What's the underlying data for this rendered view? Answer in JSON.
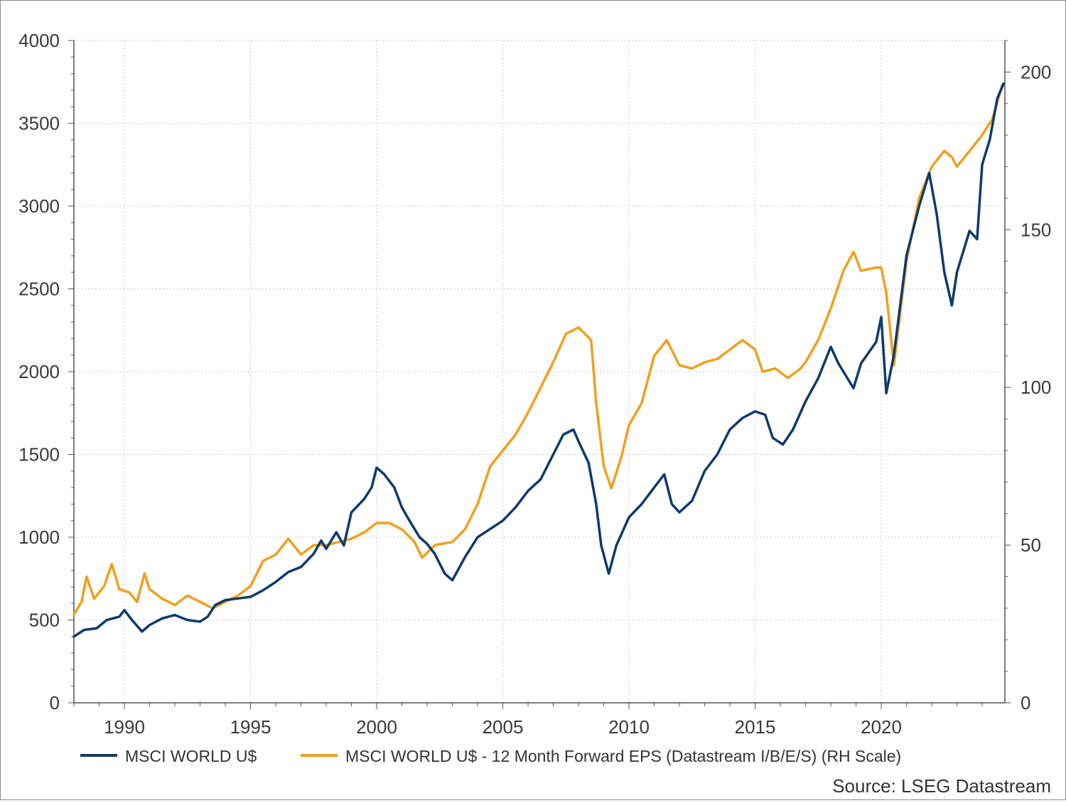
{
  "chart_data": {
    "type": "line",
    "title": "",
    "xlabel": "",
    "ylabel": "",
    "xlim": [
      1988.0,
      2024.9
    ],
    "ylim_left": [
      0,
      4000
    ],
    "ylim_right": [
      0,
      210
    ],
    "grid": true,
    "legend_position": "bottom",
    "x_ticks": [
      1990,
      1995,
      2000,
      2005,
      2010,
      2015,
      2020
    ],
    "x_tick_labels": [
      "1990",
      "1995",
      "2000",
      "2005",
      "2010",
      "2015",
      "2020"
    ],
    "y_left_ticks": [
      0,
      500,
      1000,
      1500,
      2000,
      2500,
      3000,
      3500,
      4000
    ],
    "y_left_tick_labels": [
      "0",
      "500",
      "1000",
      "1500",
      "2000",
      "2500",
      "3000",
      "3500",
      "4000"
    ],
    "y_right_ticks": [
      0,
      50,
      100,
      150,
      200
    ],
    "y_right_tick_labels": [
      "0",
      "50",
      "100",
      "150",
      "200"
    ],
    "source": "Source: LSEG Datastream",
    "series": [
      {
        "name": "MSCI WORLD U$",
        "color": "#0e3a6e",
        "axis": "left",
        "points": [
          [
            1988.0,
            400
          ],
          [
            1988.4,
            440
          ],
          [
            1988.9,
            450
          ],
          [
            1989.3,
            500
          ],
          [
            1989.8,
            520
          ],
          [
            1990.0,
            560
          ],
          [
            1990.3,
            500
          ],
          [
            1990.7,
            430
          ],
          [
            1991.0,
            470
          ],
          [
            1991.5,
            510
          ],
          [
            1992.0,
            530
          ],
          [
            1992.5,
            500
          ],
          [
            1993.0,
            490
          ],
          [
            1993.3,
            520
          ],
          [
            1993.6,
            590
          ],
          [
            1994.0,
            620
          ],
          [
            1994.5,
            630
          ],
          [
            1995.0,
            640
          ],
          [
            1995.5,
            680
          ],
          [
            1996.0,
            730
          ],
          [
            1996.5,
            790
          ],
          [
            1997.0,
            820
          ],
          [
            1997.5,
            900
          ],
          [
            1997.8,
            980
          ],
          [
            1998.0,
            930
          ],
          [
            1998.4,
            1030
          ],
          [
            1998.7,
            950
          ],
          [
            1999.0,
            1150
          ],
          [
            1999.5,
            1230
          ],
          [
            1999.8,
            1300
          ],
          [
            2000.0,
            1420
          ],
          [
            2000.3,
            1380
          ],
          [
            2000.7,
            1300
          ],
          [
            2001.0,
            1180
          ],
          [
            2001.3,
            1100
          ],
          [
            2001.7,
            1000
          ],
          [
            2002.0,
            960
          ],
          [
            2002.3,
            900
          ],
          [
            2002.7,
            780
          ],
          [
            2003.0,
            740
          ],
          [
            2003.5,
            880
          ],
          [
            2004.0,
            1000
          ],
          [
            2004.5,
            1050
          ],
          [
            2005.0,
            1100
          ],
          [
            2005.5,
            1180
          ],
          [
            2006.0,
            1280
          ],
          [
            2006.5,
            1350
          ],
          [
            2007.0,
            1500
          ],
          [
            2007.4,
            1620
          ],
          [
            2007.8,
            1650
          ],
          [
            2008.0,
            1580
          ],
          [
            2008.4,
            1450
          ],
          [
            2008.7,
            1200
          ],
          [
            2008.9,
            950
          ],
          [
            2009.2,
            780
          ],
          [
            2009.5,
            950
          ],
          [
            2010.0,
            1120
          ],
          [
            2010.5,
            1200
          ],
          [
            2011.0,
            1300
          ],
          [
            2011.4,
            1380
          ],
          [
            2011.7,
            1200
          ],
          [
            2012.0,
            1150
          ],
          [
            2012.5,
            1220
          ],
          [
            2013.0,
            1400
          ],
          [
            2013.5,
            1500
          ],
          [
            2014.0,
            1650
          ],
          [
            2014.5,
            1720
          ],
          [
            2015.0,
            1760
          ],
          [
            2015.4,
            1740
          ],
          [
            2015.7,
            1600
          ],
          [
            2016.1,
            1560
          ],
          [
            2016.5,
            1650
          ],
          [
            2017.0,
            1820
          ],
          [
            2017.5,
            1960
          ],
          [
            2018.0,
            2150
          ],
          [
            2018.3,
            2050
          ],
          [
            2018.9,
            1900
          ],
          [
            2019.2,
            2050
          ],
          [
            2019.8,
            2180
          ],
          [
            2020.0,
            2330
          ],
          [
            2020.2,
            1870
          ],
          [
            2020.5,
            2100
          ],
          [
            2021.0,
            2700
          ],
          [
            2021.5,
            3000
          ],
          [
            2021.9,
            3200
          ],
          [
            2022.2,
            2950
          ],
          [
            2022.5,
            2600
          ],
          [
            2022.8,
            2400
          ],
          [
            2023.0,
            2600
          ],
          [
            2023.5,
            2850
          ],
          [
            2023.8,
            2800
          ],
          [
            2024.0,
            3250
          ],
          [
            2024.3,
            3400
          ],
          [
            2024.6,
            3650
          ],
          [
            2024.85,
            3740
          ]
        ]
      },
      {
        "name": "MSCI WORLD U$ - 12 Month Forward EPS (Datastream I/B/E/S) (RH Scale)",
        "color": "#f0a01e",
        "axis": "right",
        "points": [
          [
            1988.0,
            28
          ],
          [
            1988.3,
            32
          ],
          [
            1988.5,
            40
          ],
          [
            1988.8,
            33
          ],
          [
            1989.2,
            37
          ],
          [
            1989.5,
            44
          ],
          [
            1989.8,
            36
          ],
          [
            1990.2,
            35
          ],
          [
            1990.5,
            32
          ],
          [
            1990.8,
            41
          ],
          [
            1991.0,
            36
          ],
          [
            1991.5,
            33
          ],
          [
            1992.0,
            31
          ],
          [
            1992.5,
            34
          ],
          [
            1993.0,
            32
          ],
          [
            1993.5,
            30
          ],
          [
            1994.0,
            32
          ],
          [
            1994.5,
            34
          ],
          [
            1995.0,
            37
          ],
          [
            1995.5,
            45
          ],
          [
            1996.0,
            47
          ],
          [
            1996.5,
            52
          ],
          [
            1997.0,
            47
          ],
          [
            1997.5,
            50
          ],
          [
            1998.0,
            50
          ],
          [
            1998.5,
            51
          ],
          [
            1999.0,
            52
          ],
          [
            1999.5,
            54
          ],
          [
            2000.0,
            57
          ],
          [
            2000.5,
            57
          ],
          [
            2001.0,
            55
          ],
          [
            2001.5,
            51
          ],
          [
            2001.8,
            46
          ],
          [
            2002.3,
            50
          ],
          [
            2003.0,
            51
          ],
          [
            2003.5,
            55
          ],
          [
            2004.0,
            63
          ],
          [
            2004.5,
            75
          ],
          [
            2005.0,
            80
          ],
          [
            2005.5,
            85
          ],
          [
            2006.0,
            92
          ],
          [
            2006.5,
            100
          ],
          [
            2007.0,
            108
          ],
          [
            2007.5,
            117
          ],
          [
            2008.0,
            119
          ],
          [
            2008.5,
            115
          ],
          [
            2008.7,
            95
          ],
          [
            2009.0,
            75
          ],
          [
            2009.3,
            68
          ],
          [
            2009.7,
            78
          ],
          [
            2010.0,
            88
          ],
          [
            2010.5,
            95
          ],
          [
            2011.0,
            110
          ],
          [
            2011.5,
            115
          ],
          [
            2012.0,
            107
          ],
          [
            2012.5,
            106
          ],
          [
            2013.0,
            108
          ],
          [
            2013.5,
            109
          ],
          [
            2014.0,
            112
          ],
          [
            2014.5,
            115
          ],
          [
            2015.0,
            112
          ],
          [
            2015.3,
            105
          ],
          [
            2015.8,
            106
          ],
          [
            2016.3,
            103
          ],
          [
            2016.8,
            106
          ],
          [
            2017.0,
            108
          ],
          [
            2017.5,
            115
          ],
          [
            2018.0,
            125
          ],
          [
            2018.5,
            137
          ],
          [
            2018.9,
            143
          ],
          [
            2019.2,
            137
          ],
          [
            2019.8,
            138
          ],
          [
            2020.0,
            138
          ],
          [
            2020.2,
            130
          ],
          [
            2020.5,
            107
          ],
          [
            2021.0,
            140
          ],
          [
            2021.5,
            160
          ],
          [
            2022.0,
            170
          ],
          [
            2022.5,
            175
          ],
          [
            2022.8,
            173
          ],
          [
            2023.0,
            170
          ],
          [
            2023.5,
            175
          ],
          [
            2024.0,
            180
          ],
          [
            2024.4,
            185
          ],
          [
            2024.8,
            196
          ]
        ]
      }
    ]
  }
}
